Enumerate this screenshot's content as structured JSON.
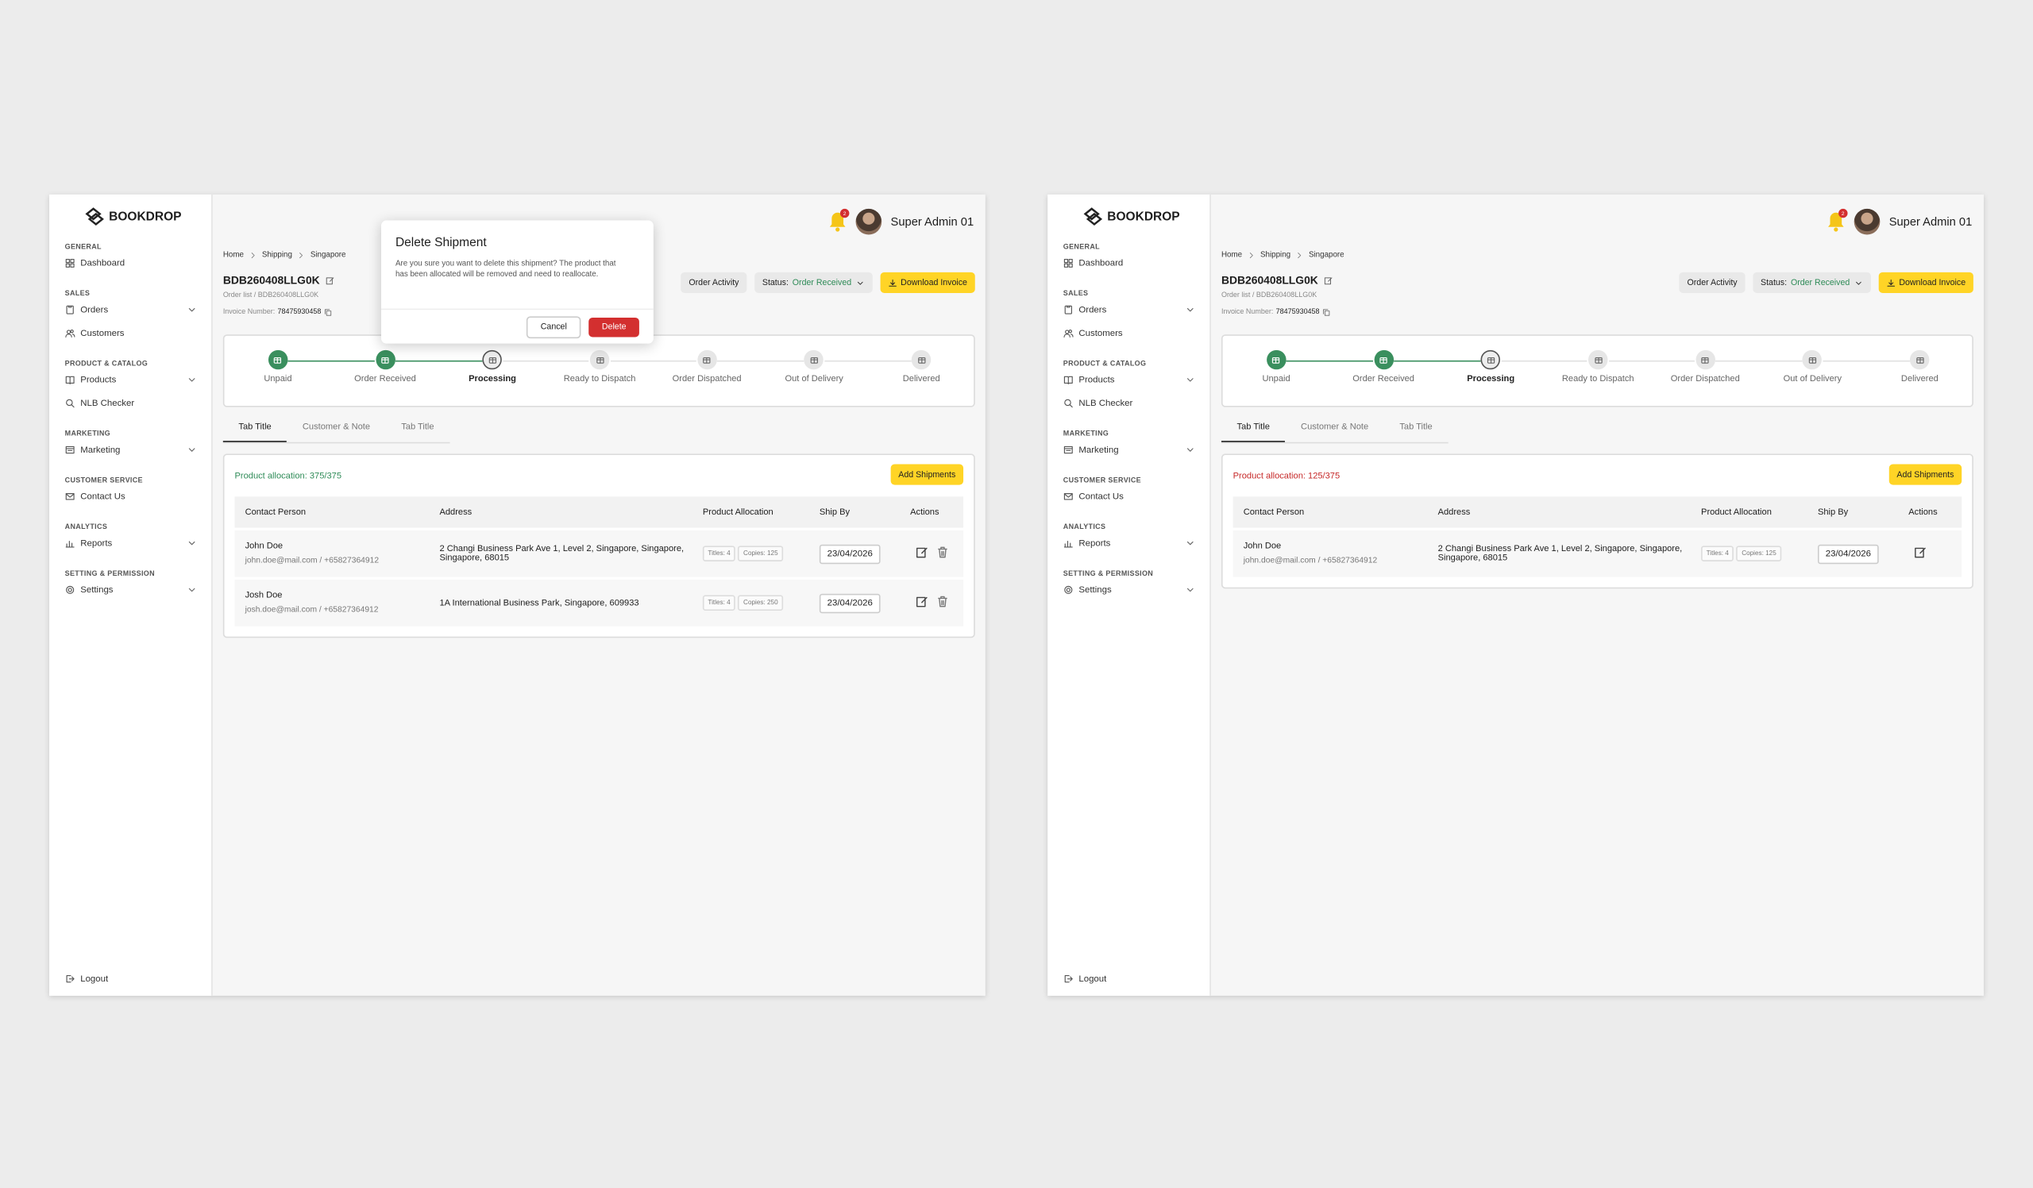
{
  "screens": [
    {
      "brand": "BOOKDROP",
      "nav": [
        {
          "title": "GENERAL",
          "items": [
            {
              "label": "Dashboard",
              "icon": "grid"
            }
          ]
        },
        {
          "title": "SALES",
          "items": [
            {
              "label": "Orders",
              "icon": "doc",
              "has_submenu": true
            },
            {
              "label": "Customers",
              "icon": "users"
            }
          ]
        },
        {
          "title": "PRODUCT & CATALOG",
          "items": [
            {
              "label": "Products",
              "icon": "book",
              "has_submenu": true
            },
            {
              "label": "NLB Checker",
              "icon": "search"
            }
          ]
        },
        {
          "title": "MARKETING",
          "items": [
            {
              "label": "Marketing",
              "icon": "board",
              "has_submenu": true
            }
          ]
        },
        {
          "title": "CUSTOMER SERVICE",
          "items": [
            {
              "label": "Contact Us",
              "icon": "mail"
            }
          ]
        },
        {
          "title": "ANALYTICS",
          "items": [
            {
              "label": "Reports",
              "icon": "chart",
              "has_submenu": true
            }
          ]
        },
        {
          "title": "SETTING & PERMISSION",
          "items": [
            {
              "label": "Settings",
              "icon": "gear",
              "has_submenu": true
            }
          ]
        }
      ],
      "logout": "Logout",
      "notifications": 2,
      "user": "Super Admin 01",
      "breadcrumb": [
        "Home",
        "Shipping",
        "Singapore"
      ],
      "order_id": "BDB260408LLG0K",
      "order_path": "Order list / BDB260408LLG0K",
      "invoice_label": "Invoice Number:",
      "invoice_number": "78475930458",
      "order_activity": "Order Activity",
      "status_label": "Status:",
      "status_value": "Order Received",
      "download": "Download Invoice",
      "steps": [
        {
          "label": "Unpaid",
          "state": "done"
        },
        {
          "label": "Order Received",
          "state": "done"
        },
        {
          "label": "Processing",
          "state": "current"
        },
        {
          "label": "Ready to Dispatch",
          "state": "pending"
        },
        {
          "label": "Order Dispatched",
          "state": "pending"
        },
        {
          "label": "Out of Delivery",
          "state": "pending"
        },
        {
          "label": "Delivered",
          "state": "pending"
        }
      ],
      "tabs": [
        "Tab Title",
        "Customer & Note",
        "Tab Title"
      ],
      "active_tab": 0,
      "allocation": "Product allocation: 375/375",
      "allocation_color": "#2e8b57",
      "add_button": "Add Shipments",
      "columns": [
        "Contact Person",
        "Address",
        "Product Allocation",
        "Ship By",
        "Actions"
      ],
      "rows": [
        {
          "name": "John Doe",
          "contact": "john.doe@mail.com / +65827364912",
          "address": "2 Changi Business Park Ave 1, Level 2, Singapore, Singapore, Singapore, 68015",
          "titles": "Titles: 4",
          "copies": "Copies: 125",
          "ship_by": "23/04/2026",
          "deletable": true
        },
        {
          "name": "Josh Doe",
          "contact": "josh.doe@mail.com / +65827364912",
          "address": "1A International Business Park, Singapore, 609933",
          "titles": "Titles: 4",
          "copies": "Copies: 250",
          "ship_by": "23/04/2026",
          "deletable": true
        }
      ],
      "dialog": {
        "title": "Delete Shipment",
        "body": "Are you sure you want to delete this shipment? The product that has been allocated will be removed and need to reallocate.",
        "cancel": "Cancel",
        "confirm": "Delete"
      }
    },
    {
      "brand": "BOOKDROP",
      "nav": [
        {
          "title": "GENERAL",
          "items": [
            {
              "label": "Dashboard",
              "icon": "grid"
            }
          ]
        },
        {
          "title": "SALES",
          "items": [
            {
              "label": "Orders",
              "icon": "doc",
              "has_submenu": true
            },
            {
              "label": "Customers",
              "icon": "users"
            }
          ]
        },
        {
          "title": "PRODUCT & CATALOG",
          "items": [
            {
              "label": "Products",
              "icon": "book",
              "has_submenu": true
            },
            {
              "label": "NLB Checker",
              "icon": "search"
            }
          ]
        },
        {
          "title": "MARKETING",
          "items": [
            {
              "label": "Marketing",
              "icon": "board",
              "has_submenu": true
            }
          ]
        },
        {
          "title": "CUSTOMER SERVICE",
          "items": [
            {
              "label": "Contact Us",
              "icon": "mail"
            }
          ]
        },
        {
          "title": "ANALYTICS",
          "items": [
            {
              "label": "Reports",
              "icon": "chart",
              "has_submenu": true
            }
          ]
        },
        {
          "title": "SETTING & PERMISSION",
          "items": [
            {
              "label": "Settings",
              "icon": "gear",
              "has_submenu": true
            }
          ]
        }
      ],
      "logout": "Logout",
      "notifications": 2,
      "user": "Super Admin 01",
      "breadcrumb": [
        "Home",
        "Shipping",
        "Singapore"
      ],
      "order_id": "BDB260408LLG0K",
      "order_path": "Order list / BDB260408LLG0K",
      "invoice_label": "Invoice Number:",
      "invoice_number": "78475930458",
      "order_activity": "Order Activity",
      "status_label": "Status:",
      "status_value": "Order Received",
      "download": "Download Invoice",
      "steps": [
        {
          "label": "Unpaid",
          "state": "done"
        },
        {
          "label": "Order Received",
          "state": "done"
        },
        {
          "label": "Processing",
          "state": "current"
        },
        {
          "label": "Ready to Dispatch",
          "state": "pending"
        },
        {
          "label": "Order Dispatched",
          "state": "pending"
        },
        {
          "label": "Out of Delivery",
          "state": "pending"
        },
        {
          "label": "Delivered",
          "state": "pending"
        }
      ],
      "tabs": [
        "Tab Title",
        "Customer & Note",
        "Tab Title"
      ],
      "active_tab": 0,
      "allocation": "Product allocation: 125/375",
      "allocation_color": "#c62828",
      "add_button": "Add Shipments",
      "columns": [
        "Contact Person",
        "Address",
        "Product Allocation",
        "Ship By",
        "Actions"
      ],
      "rows": [
        {
          "name": "John Doe",
          "contact": "john.doe@mail.com / +65827364912",
          "address": "2 Changi Business Park Ave 1, Level 2, Singapore, Singapore, Singapore, 68015",
          "titles": "Titles: 4",
          "copies": "Copies: 125",
          "ship_by": "23/04/2026",
          "deletable": false
        }
      ]
    }
  ]
}
